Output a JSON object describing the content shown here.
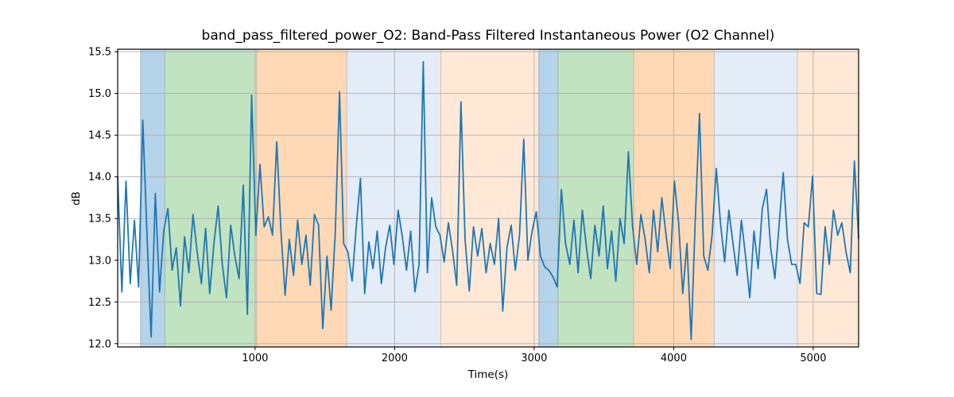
{
  "figure": {
    "title": "band_pass_filtered_power_O2: Band-Pass Filtered Instantaneous Power (O2 Channel)",
    "xlabel": "Time(s)",
    "ylabel": "dB"
  },
  "chart_data": {
    "type": "line",
    "title": "band_pass_filtered_power_O2: Band-Pass Filtered Instantaneous Power (O2 Channel)",
    "xlabel": "Time(s)",
    "ylabel": "dB",
    "xlim": [
      15,
      5325
    ],
    "ylim": [
      11.96,
      15.53
    ],
    "xticks": [
      1000,
      2000,
      3000,
      4000,
      5000
    ],
    "yticks": [
      12.0,
      12.5,
      13.0,
      13.5,
      14.0,
      14.5,
      15.0,
      15.5
    ],
    "grid": true,
    "legend": "none",
    "line_color": "#1f77b4",
    "grid_color": "#b0b0b0",
    "spine_color": "#000000",
    "bands": [
      {
        "t0": 180,
        "t1": 354,
        "color": "#b5d3e9"
      },
      {
        "t0": 354,
        "t1": 1011,
        "color": "#c1e3c0"
      },
      {
        "t0": 1011,
        "t1": 1657,
        "color": "#ffd9b6"
      },
      {
        "t0": 1657,
        "t1": 2331,
        "color": "#e4ecf7"
      },
      {
        "t0": 2331,
        "t1": 3034,
        "color": "#ffe9d6"
      },
      {
        "t0": 3034,
        "t1": 3171,
        "color": "#b5d3e9"
      },
      {
        "t0": 3171,
        "t1": 3714,
        "color": "#c1e3c0"
      },
      {
        "t0": 3714,
        "t1": 4291,
        "color": "#ffd9b6"
      },
      {
        "t0": 4291,
        "t1": 4886,
        "color": "#e4ecf7"
      },
      {
        "t0": 4886,
        "t1": 5325,
        "color": "#ffe9d6"
      }
    ],
    "x": [
      15,
      45,
      75,
      105,
      135,
      165,
      195,
      225,
      255,
      285,
      315,
      345,
      375,
      405,
      435,
      465,
      495,
      525,
      555,
      585,
      615,
      645,
      675,
      705,
      735,
      765,
      795,
      825,
      855,
      885,
      915,
      945,
      975,
      1005,
      1035,
      1065,
      1095,
      1125,
      1155,
      1185,
      1215,
      1245,
      1275,
      1305,
      1335,
      1365,
      1395,
      1425,
      1455,
      1485,
      1515,
      1545,
      1575,
      1605,
      1635,
      1665,
      1695,
      1725,
      1755,
      1785,
      1815,
      1845,
      1875,
      1905,
      1935,
      1965,
      1995,
      2025,
      2055,
      2085,
      2115,
      2145,
      2175,
      2205,
      2235,
      2265,
      2295,
      2325,
      2355,
      2385,
      2415,
      2445,
      2475,
      2505,
      2535,
      2565,
      2595,
      2625,
      2655,
      2685,
      2715,
      2745,
      2775,
      2805,
      2835,
      2865,
      2895,
      2925,
      2955,
      2985,
      3015,
      3045,
      3075,
      3105,
      3135,
      3165,
      3195,
      3225,
      3255,
      3285,
      3315,
      3345,
      3375,
      3405,
      3435,
      3465,
      3495,
      3525,
      3555,
      3585,
      3615,
      3645,
      3675,
      3705,
      3735,
      3765,
      3795,
      3825,
      3855,
      3885,
      3915,
      3945,
      3975,
      4005,
      4035,
      4065,
      4095,
      4125,
      4155,
      4185,
      4215,
      4245,
      4275,
      4305,
      4335,
      4365,
      4395,
      4425,
      4455,
      4485,
      4515,
      4545,
      4575,
      4605,
      4635,
      4665,
      4695,
      4725,
      4755,
      4785,
      4815,
      4845,
      4875,
      4905,
      4935,
      4965,
      4995,
      5025,
      5055,
      5085,
      5115,
      5145,
      5175,
      5205,
      5235,
      5265,
      5295,
      5325
    ],
    "y": [
      14.0,
      12.62,
      13.95,
      12.72,
      13.48,
      12.68,
      14.68,
      13.3,
      12.08,
      13.8,
      12.62,
      13.35,
      13.62,
      12.88,
      13.15,
      12.45,
      13.28,
      12.85,
      13.55,
      13.1,
      12.72,
      13.38,
      12.6,
      13.2,
      13.65,
      12.95,
      12.55,
      13.42,
      13.05,
      12.78,
      13.9,
      12.35,
      14.98,
      13.3,
      14.15,
      13.4,
      13.52,
      13.3,
      14.42,
      13.35,
      12.58,
      13.25,
      12.82,
      13.48,
      12.95,
      13.3,
      12.7,
      13.55,
      13.42,
      12.18,
      13.05,
      12.4,
      13.35,
      15.02,
      13.2,
      13.1,
      12.75,
      13.4,
      13.98,
      12.6,
      13.22,
      12.9,
      13.35,
      12.72,
      13.15,
      13.42,
      12.95,
      13.6,
      13.28,
      12.88,
      13.35,
      12.62,
      12.95,
      15.38,
      12.85,
      13.75,
      13.4,
      13.3,
      12.98,
      13.45,
      13.12,
      12.7,
      14.9,
      13.25,
      12.63,
      13.4,
      13.05,
      13.38,
      12.85,
      13.2,
      12.95,
      13.5,
      12.39,
      13.15,
      13.42,
      12.88,
      13.3,
      14.45,
      13.0,
      13.35,
      13.58,
      13.05,
      12.92,
      12.88,
      12.8,
      12.68,
      13.85,
      13.2,
      12.95,
      13.48,
      12.85,
      13.6,
      13.15,
      12.78,
      13.42,
      13.05,
      13.65,
      12.9,
      13.35,
      12.75,
      13.5,
      13.2,
      14.3,
      13.4,
      12.95,
      13.55,
      13.25,
      12.85,
      13.6,
      13.1,
      13.75,
      13.3,
      12.9,
      13.95,
      13.45,
      12.6,
      13.2,
      12.05,
      13.5,
      14.76,
      13.05,
      12.88,
      13.3,
      14.1,
      13.45,
      12.98,
      13.6,
      13.2,
      12.82,
      13.48,
      13.05,
      12.55,
      13.35,
      12.9,
      13.62,
      13.85,
      13.15,
      12.78,
      13.42,
      14.05,
      13.25,
      12.95,
      12.95,
      12.72,
      13.45,
      13.4,
      14.01,
      12.6,
      12.59,
      13.4,
      12.95,
      13.6,
      13.3,
      13.45,
      13.1,
      12.85,
      14.19,
      13.26
    ]
  }
}
